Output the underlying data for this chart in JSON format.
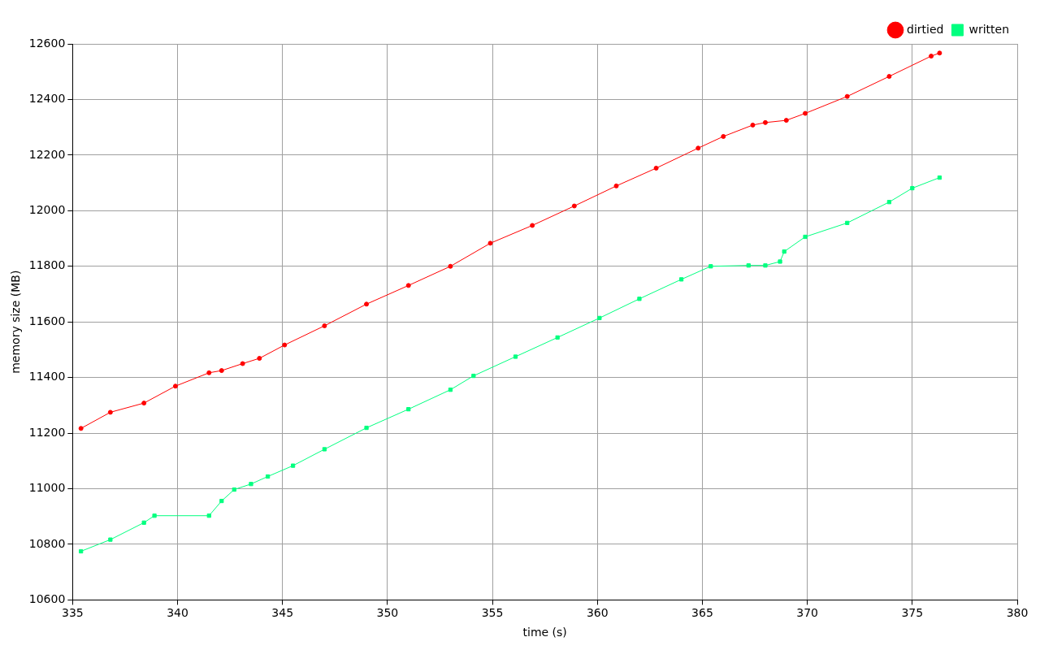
{
  "chart_data": {
    "type": "line",
    "xlabel": "time (s)",
    "ylabel": "memory size (MB)",
    "xlim": [
      335,
      380
    ],
    "xticks": [
      335,
      340,
      345,
      350,
      355,
      360,
      365,
      370,
      375,
      380
    ],
    "ylim": [
      10600,
      12600
    ],
    "yticks": [
      10600,
      10800,
      11000,
      11200,
      11400,
      11600,
      11800,
      12000,
      12200,
      12400,
      12600
    ],
    "grid": true,
    "legend": "top right",
    "series": [
      {
        "name": "dirtied",
        "color": "#ff0000",
        "marker": "circle",
        "x": [
          335.4,
          336.8,
          338.4,
          339.9,
          341.5,
          342.1,
          343.1,
          343.9,
          345.1,
          347,
          349,
          351,
          353,
          354.9,
          356.9,
          358.9,
          360.9,
          362.8,
          364.8,
          366,
          367.4,
          368,
          369,
          369.9,
          371.9,
          373.9,
          375.9,
          376.3
        ],
        "values": [
          11217,
          11275,
          11308,
          11369,
          11417,
          11425,
          11450,
          11469,
          11517,
          11586,
          11664,
          11731,
          11800,
          11883,
          11947,
          12017,
          12089,
          12153,
          12225,
          12267,
          12308,
          12317,
          12325,
          12350,
          12411,
          12483,
          12556,
          12567
        ]
      },
      {
        "name": "written",
        "color": "#00ff7f",
        "marker": "square",
        "x": [
          335.4,
          336.8,
          338.4,
          338.9,
          341.5,
          342.1,
          342.7,
          343.5,
          344.3,
          345.5,
          347,
          349,
          351,
          353,
          354.1,
          356.1,
          358.1,
          360.1,
          362,
          364,
          365.4,
          367.2,
          368,
          368.7,
          368.9,
          369.9,
          371.9,
          373.9,
          375,
          376.3
        ],
        "values": [
          10775,
          10817,
          10878,
          10903,
          10903,
          10956,
          10997,
          11017,
          11044,
          11083,
          11142,
          11219,
          11286,
          11356,
          11406,
          11475,
          11544,
          11614,
          11683,
          11753,
          11800,
          11803,
          11803,
          11817,
          11853,
          11906,
          11956,
          12031,
          12081,
          12119
        ]
      }
    ]
  }
}
